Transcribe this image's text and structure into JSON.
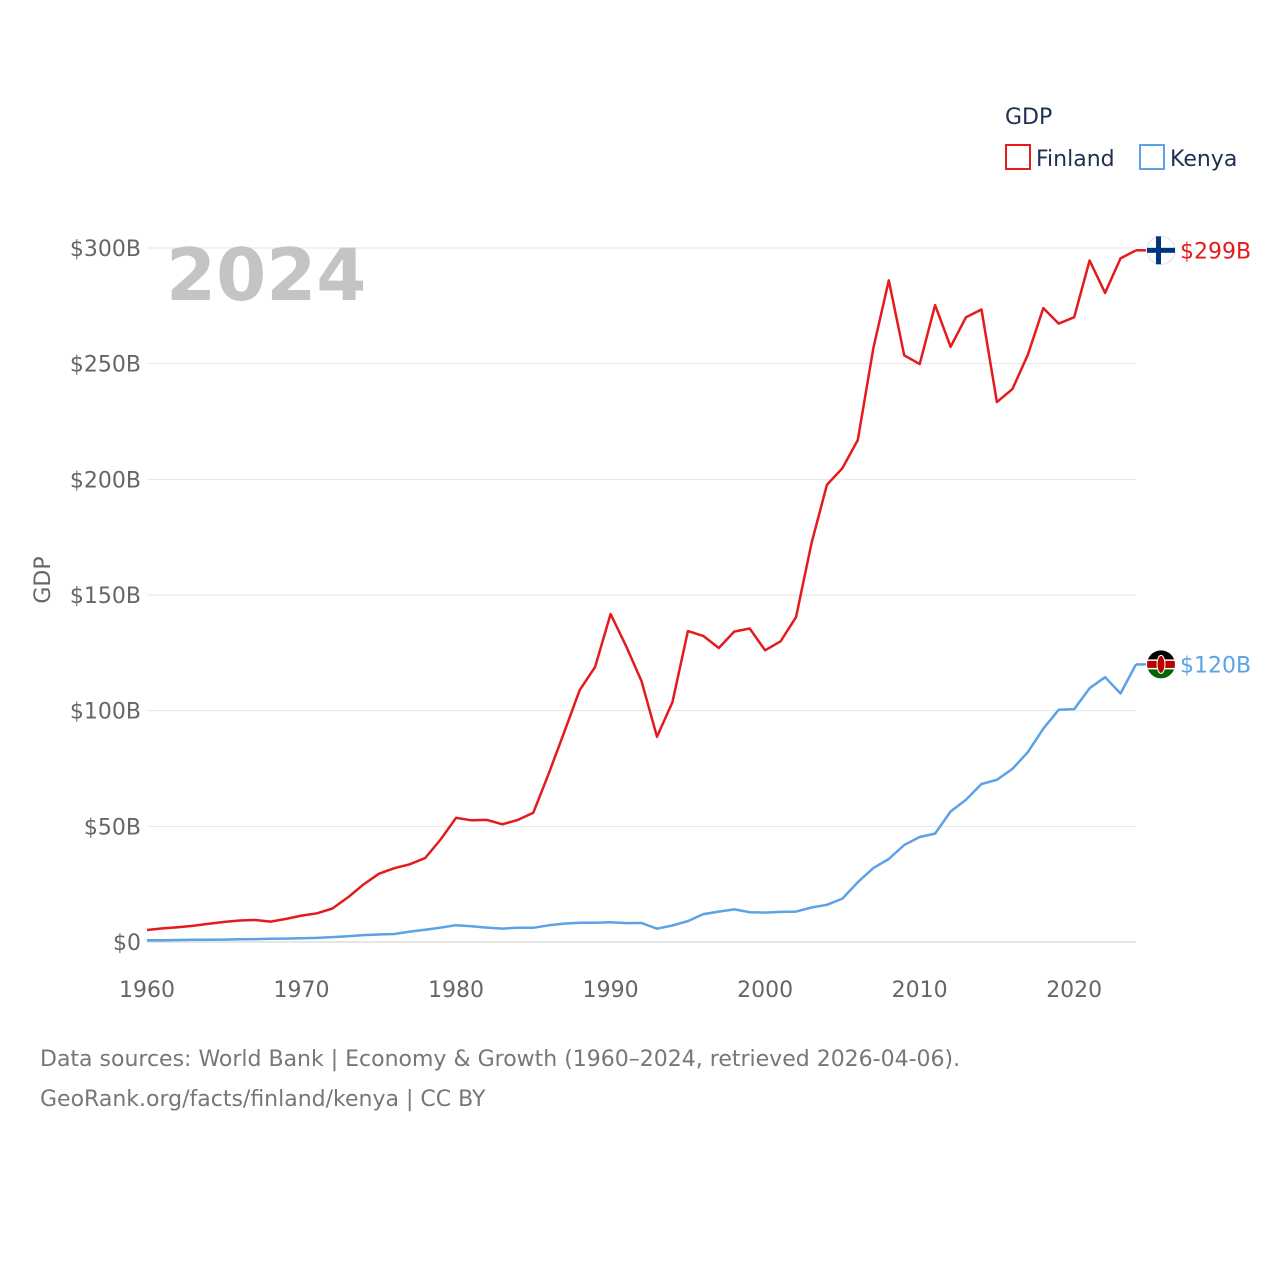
{
  "chart_data": {
    "type": "line",
    "year_label": "2024",
    "ylabel": "GDP",
    "legend_title": "GDP",
    "legend_position": "top-right",
    "ylim": [
      0,
      300
    ],
    "xlim": [
      1960,
      2024
    ],
    "y_ticks": [
      0,
      50,
      100,
      150,
      200,
      250,
      300
    ],
    "y_tick_labels": [
      "$0",
      "$50B",
      "$100B",
      "$150B",
      "$200B",
      "$250B",
      "$300B"
    ],
    "x_ticks": [
      1960,
      1970,
      1980,
      1990,
      2000,
      2010,
      2020
    ],
    "x_tick_labels": [
      "1960",
      "1970",
      "1980",
      "1990",
      "2000",
      "2010",
      "2020"
    ],
    "x": [
      1960,
      1961,
      1962,
      1963,
      1964,
      1965,
      1966,
      1967,
      1968,
      1969,
      1970,
      1971,
      1972,
      1973,
      1974,
      1975,
      1976,
      1977,
      1978,
      1979,
      1980,
      1981,
      1982,
      1983,
      1984,
      1985,
      1986,
      1987,
      1988,
      1989,
      1990,
      1991,
      1992,
      1993,
      1994,
      1995,
      1996,
      1997,
      1998,
      1999,
      2000,
      2001,
      2002,
      2003,
      2004,
      2005,
      2006,
      2007,
      2008,
      2009,
      2010,
      2011,
      2012,
      2013,
      2014,
      2015,
      2016,
      2017,
      2018,
      2019,
      2020,
      2021,
      2022,
      2023,
      2024
    ],
    "series": [
      {
        "name": "Finland",
        "color": "#e41a1c",
        "end_label": "$299B",
        "flag": "finland-flag-icon",
        "values": [
          5.2,
          5.9,
          6.4,
          7.0,
          7.9,
          8.7,
          9.3,
          9.5,
          8.8,
          10.0,
          11.4,
          12.4,
          14.5,
          19.3,
          24.8,
          29.5,
          31.9,
          33.6,
          36.3,
          44.3,
          53.7,
          52.6,
          52.8,
          50.9,
          52.8,
          55.9,
          72.9,
          90.7,
          108.9,
          118.9,
          141.8,
          128.0,
          112.8,
          88.7,
          103.6,
          134.4,
          132.3,
          127.1,
          134.2,
          135.5,
          126.1,
          130.0,
          140.4,
          172.4,
          197.6,
          204.8,
          217.0,
          256.6,
          286.0,
          253.6,
          249.8,
          275.3,
          257.3,
          270.1,
          273.4,
          233.4,
          239.0,
          253.8,
          274.0,
          267.3,
          270.1,
          294.6,
          280.6,
          295.5,
          299.0
        ]
      },
      {
        "name": "Kenya",
        "color": "#5ba2e6",
        "end_label": "$120B",
        "flag": "kenya-flag-icon",
        "values": [
          0.79,
          0.79,
          0.87,
          0.93,
          0.99,
          1.02,
          1.18,
          1.24,
          1.37,
          1.47,
          1.6,
          1.78,
          2.11,
          2.52,
          2.97,
          3.26,
          3.47,
          4.49,
          5.3,
          6.23,
          7.27,
          6.85,
          6.24,
          5.8,
          6.19,
          6.14,
          7.24,
          7.97,
          8.36,
          8.28,
          8.57,
          8.15,
          8.21,
          5.75,
          7.15,
          9.05,
          12.05,
          13.12,
          14.09,
          12.9,
          12.71,
          12.99,
          13.15,
          14.9,
          16.1,
          18.74,
          25.83,
          31.96,
          35.9,
          41.95,
          45.41,
          46.87,
          56.4,
          61.45,
          68.29,
          70.12,
          74.82,
          82.04,
          92.2,
          100.38,
          100.67,
          109.7,
          114.45,
          107.44,
          120.0
        ]
      }
    ]
  },
  "footer": {
    "line1": "Data sources: World Bank | Economy & Growth (1960–2024, retrieved 2026-04-06).",
    "line2": "GeoRank.org/facts/finland/kenya | CC BY"
  }
}
